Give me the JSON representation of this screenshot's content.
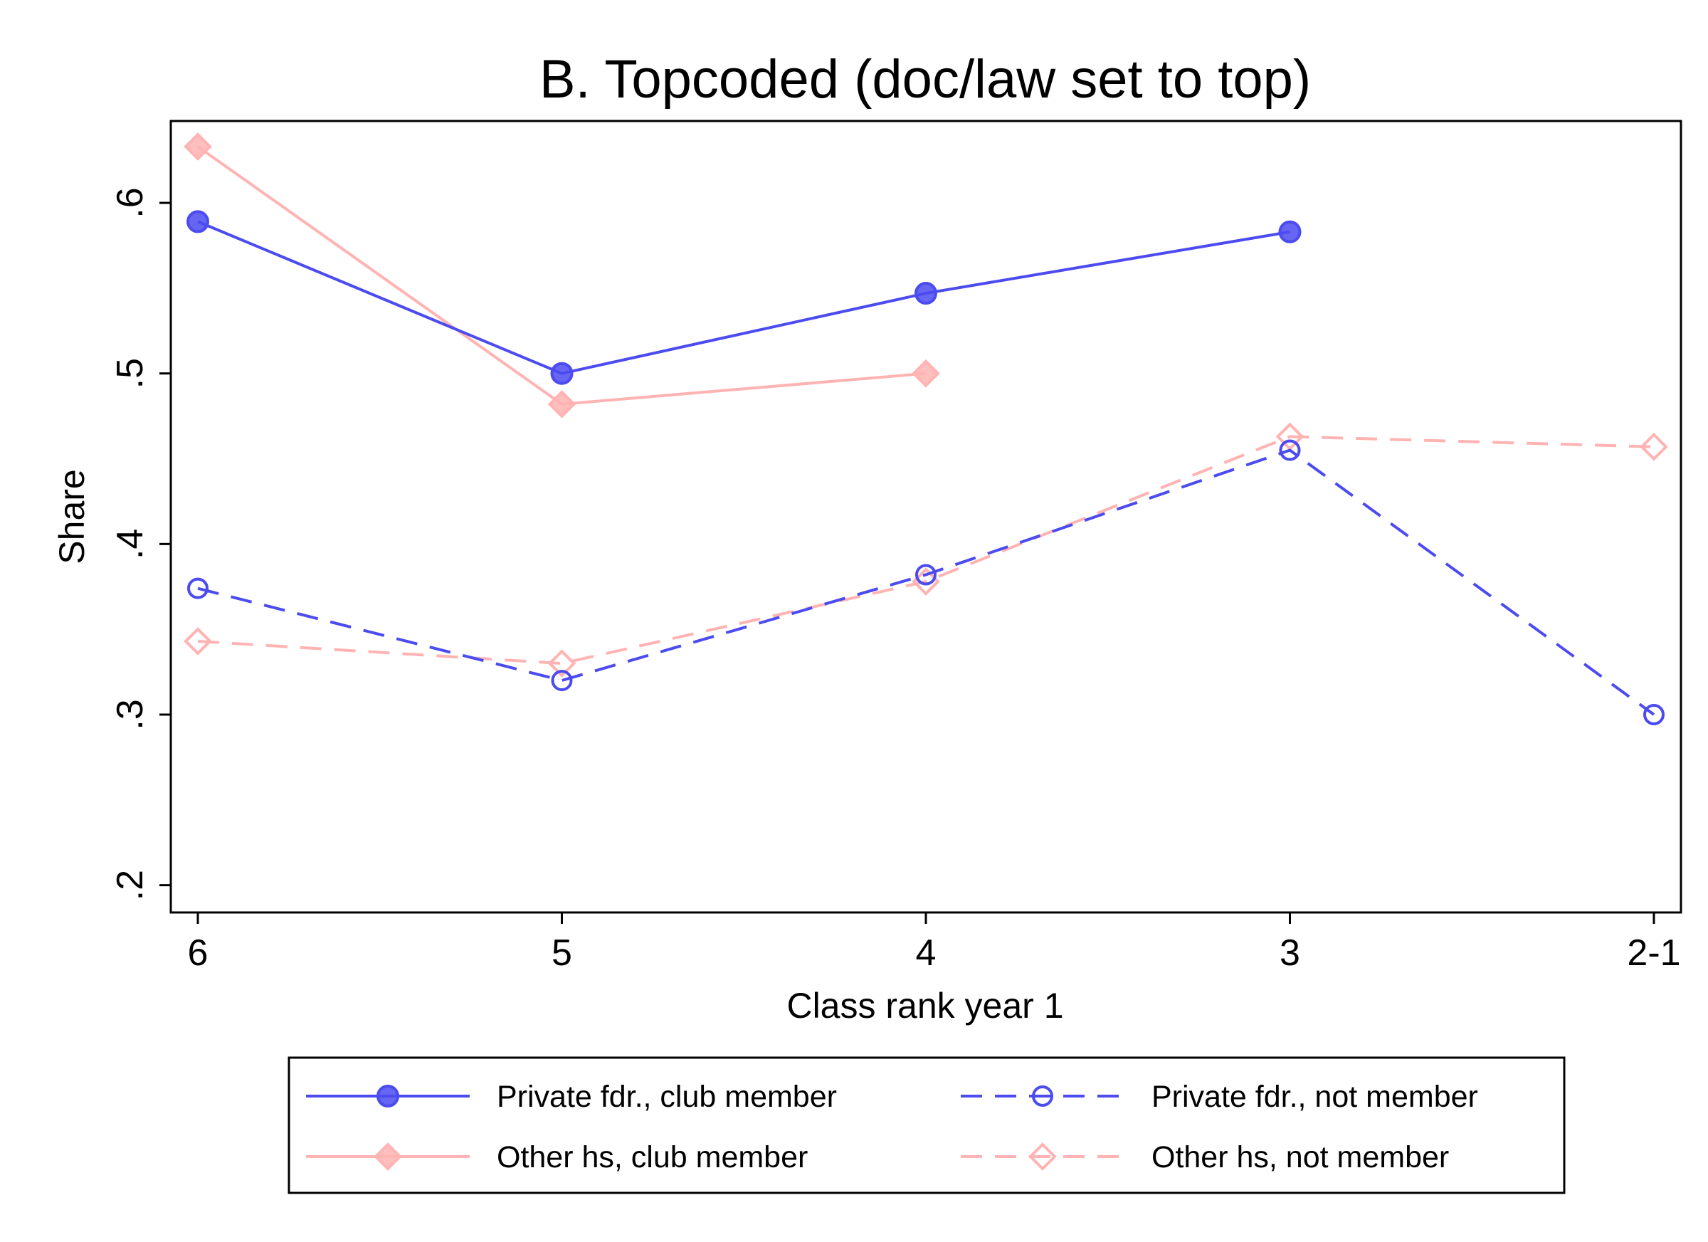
{
  "chart_data": {
    "type": "line",
    "title": "B. Topcoded (doc/law set to top)",
    "xlabel": "Class rank year 1",
    "ylabel": "Share",
    "categories": [
      "6",
      "5",
      "4",
      "3",
      "2-1"
    ],
    "y_ticks": [
      0.2,
      0.3,
      0.4,
      0.5,
      0.6
    ],
    "y_tick_labels": [
      ".2",
      ".3",
      ".4",
      ".5",
      ".6"
    ],
    "ylim": [
      0.184,
      0.648
    ],
    "grid": false,
    "legend_position": "bottom",
    "series": [
      {
        "name": "Private fdr., club member",
        "values": [
          0.589,
          0.5,
          0.547,
          0.583,
          null
        ],
        "color": "#4b4bf0",
        "line": "solid",
        "marker": "filled-circle"
      },
      {
        "name": "Private fdr., not member",
        "values": [
          0.374,
          0.32,
          0.382,
          0.455,
          0.3
        ],
        "color": "#4b4bf0",
        "line": "dashed",
        "marker": "hollow-circle"
      },
      {
        "name": "Other hs, club member",
        "values": [
          0.633,
          0.482,
          0.5,
          null,
          null
        ],
        "color": "#ffb3b3",
        "line": "solid",
        "marker": "filled-diamond"
      },
      {
        "name": "Other hs, not member",
        "values": [
          0.343,
          0.33,
          0.378,
          0.463,
          0.457
        ],
        "color": "#ffb3b3",
        "line": "dashed",
        "marker": "hollow-diamond"
      }
    ]
  }
}
